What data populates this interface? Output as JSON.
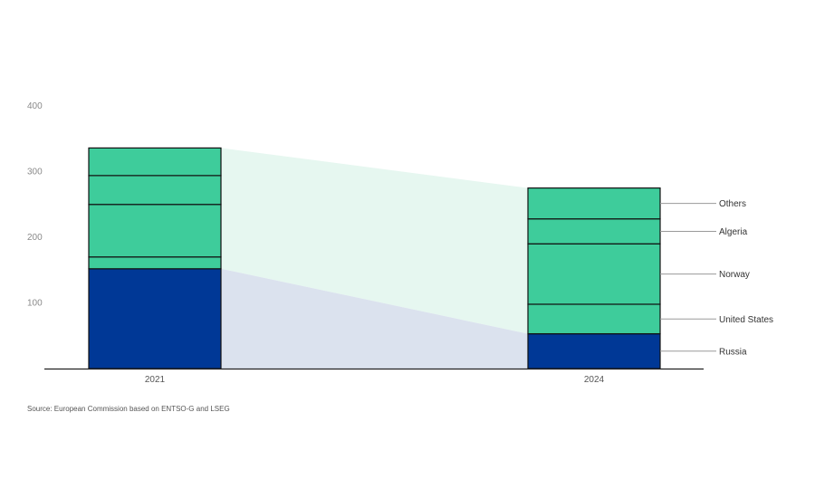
{
  "chart_data": {
    "type": "bar",
    "stacked": true,
    "categories": [
      "2021",
      "2024"
    ],
    "ylim": [
      0,
      400
    ],
    "yticks": [
      100,
      200,
      300,
      400
    ],
    "series": [
      {
        "name": "Russia",
        "values": [
          152,
          53
        ]
      },
      {
        "name": "United States",
        "values": [
          18,
          45
        ]
      },
      {
        "name": "Norway",
        "values": [
          80,
          92
        ]
      },
      {
        "name": "Algeria",
        "values": [
          44,
          38
        ]
      },
      {
        "name": "Others",
        "values": [
          42,
          47
        ]
      }
    ],
    "legend_position": "right of 2024 bar",
    "grid": false
  },
  "colors": {
    "russia": "#003896",
    "other_stack": "#3ecc9b",
    "outline": "#111111",
    "band_russia": "#dbe2ee",
    "band_total": "#e6f7f0",
    "axis": "#222222",
    "leader": "#9a9a9a"
  },
  "source_text": "Source: European Commission based on ENTSO-G and LSEG"
}
